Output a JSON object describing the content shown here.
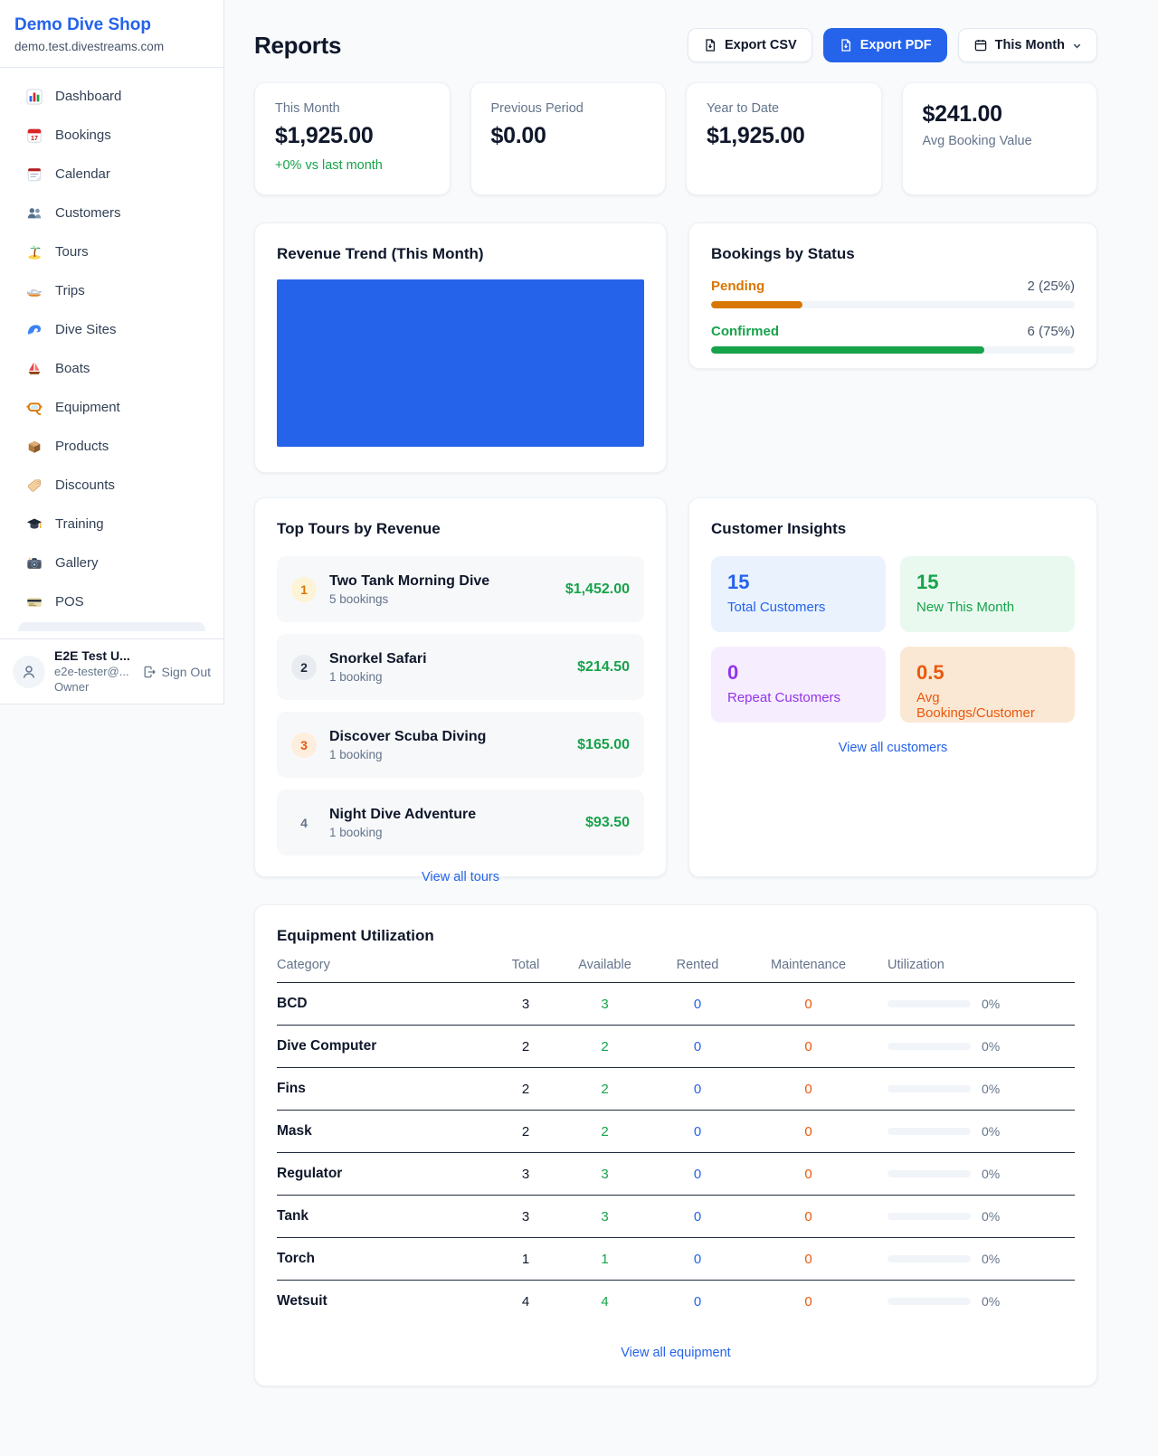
{
  "colors": {
    "brand_blue": "#2563eb",
    "success_green": "#16a34a",
    "pending_orange": "#d97706",
    "maintenance_orange": "#ea580c",
    "repeat_purple": "#9333ea",
    "link_blue": "#2563eb",
    "page_background": "#f8fafc"
  },
  "sidebar": {
    "shop_name": "Demo Dive Shop",
    "shop_domain": "demo.test.divestreams.com",
    "items": [
      {
        "label": "Dashboard",
        "icon": "dashboard-icon"
      },
      {
        "label": "Bookings",
        "icon": "bookings-calendar-icon"
      },
      {
        "label": "Calendar",
        "icon": "calendar-icon"
      },
      {
        "label": "Customers",
        "icon": "customers-icon"
      },
      {
        "label": "Tours",
        "icon": "tours-island-icon"
      },
      {
        "label": "Trips",
        "icon": "trips-boat-icon"
      },
      {
        "label": "Dive Sites",
        "icon": "dive-sites-wave-icon"
      },
      {
        "label": "Boats",
        "icon": "boats-sailboat-icon"
      },
      {
        "label": "Equipment",
        "icon": "equipment-mask-icon"
      },
      {
        "label": "Products",
        "icon": "products-box-icon"
      },
      {
        "label": "Discounts",
        "icon": "discounts-tag-icon"
      },
      {
        "label": "Training",
        "icon": "training-cap-icon"
      },
      {
        "label": "Gallery",
        "icon": "gallery-camera-icon"
      },
      {
        "label": "POS",
        "icon": "pos-card-icon"
      }
    ],
    "user": {
      "name": "E2E Test U...",
      "email": "e2e-tester@...",
      "role": "Owner",
      "sign_out_label": "Sign Out"
    }
  },
  "header": {
    "title": "Reports",
    "export_csv_label": "Export CSV",
    "export_pdf_label": "Export PDF",
    "period_label": "This Month"
  },
  "stats": {
    "this_month": {
      "label": "This Month",
      "value": "$1,925.00",
      "delta": "+0% vs last month"
    },
    "previous_period": {
      "label": "Previous Period",
      "value": "$0.00"
    },
    "year_to_date": {
      "label": "Year to Date",
      "value": "$1,925.00"
    },
    "avg_booking": {
      "value": "$241.00",
      "label": "Avg Booking Value"
    }
  },
  "revenue_trend": {
    "title": "Revenue Trend (This Month)"
  },
  "chart_data": {
    "type": "bar",
    "title": "Revenue Trend (This Month)",
    "categories": [
      "This Month"
    ],
    "values": [
      1925
    ],
    "color": "#2563eb"
  },
  "bookings_by_status": {
    "title": "Bookings by Status",
    "rows": [
      {
        "label": "Pending",
        "count_text": "2 (25%)",
        "pct": 25
      },
      {
        "label": "Confirmed",
        "count_text": "6 (75%)",
        "pct": 75
      }
    ]
  },
  "top_tours": {
    "title": "Top Tours by Revenue",
    "view_all_label": "View all tours",
    "items": [
      {
        "rank": "1",
        "name": "Two Tank Morning Dive",
        "bookings": "5 bookings",
        "revenue": "$1,452.00"
      },
      {
        "rank": "2",
        "name": "Snorkel Safari",
        "bookings": "1 booking",
        "revenue": "$214.50"
      },
      {
        "rank": "3",
        "name": "Discover Scuba Diving",
        "bookings": "1 booking",
        "revenue": "$165.00"
      },
      {
        "rank": "4",
        "name": "Night Dive Adventure",
        "bookings": "1 booking",
        "revenue": "$93.50"
      }
    ]
  },
  "customer_insights": {
    "title": "Customer Insights",
    "view_all_label": "View all customers",
    "tiles": [
      {
        "value": "15",
        "label": "Total Customers"
      },
      {
        "value": "15",
        "label": "New This Month"
      },
      {
        "value": "0",
        "label": "Repeat Customers"
      },
      {
        "value": "0.5",
        "label": "Avg Bookings/Customer"
      }
    ]
  },
  "equipment": {
    "title": "Equipment Utilization",
    "view_all_label": "View all equipment",
    "columns": [
      "Category",
      "Total",
      "Available",
      "Rented",
      "Maintenance",
      "Utilization"
    ],
    "rows": [
      {
        "category": "BCD",
        "total": "3",
        "available": "3",
        "rented": "0",
        "maintenance": "0",
        "utilization": "0%",
        "utilization_pct": 0
      },
      {
        "category": "Dive Computer",
        "total": "2",
        "available": "2",
        "rented": "0",
        "maintenance": "0",
        "utilization": "0%",
        "utilization_pct": 0
      },
      {
        "category": "Fins",
        "total": "2",
        "available": "2",
        "rented": "0",
        "maintenance": "0",
        "utilization": "0%",
        "utilization_pct": 0
      },
      {
        "category": "Mask",
        "total": "2",
        "available": "2",
        "rented": "0",
        "maintenance": "0",
        "utilization": "0%",
        "utilization_pct": 0
      },
      {
        "category": "Regulator",
        "total": "3",
        "available": "3",
        "rented": "0",
        "maintenance": "0",
        "utilization": "0%",
        "utilization_pct": 0
      },
      {
        "category": "Tank",
        "total": "3",
        "available": "3",
        "rented": "0",
        "maintenance": "0",
        "utilization": "0%",
        "utilization_pct": 0
      },
      {
        "category": "Torch",
        "total": "1",
        "available": "1",
        "rented": "0",
        "maintenance": "0",
        "utilization": "0%",
        "utilization_pct": 0
      },
      {
        "category": "Wetsuit",
        "total": "4",
        "available": "4",
        "rented": "0",
        "maintenance": "0",
        "utilization": "0%",
        "utilization_pct": 0
      }
    ]
  }
}
